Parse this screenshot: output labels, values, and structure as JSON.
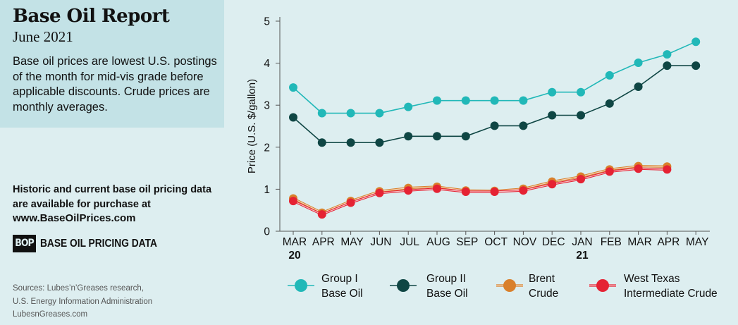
{
  "header": {
    "title": "Base Oil Report",
    "subtitle": "June 2021",
    "description": "Base oil prices are lowest U.S. postings of the month for mid-vis grade before applicable discounts. Crude prices are monthly averages."
  },
  "purchase": {
    "note": "Historic and current base oil pricing data are available for purchase at",
    "url": "www.BaseOilPrices.com",
    "logo_mark": "BOP",
    "logo_text": "BASE OIL PRICING DATA"
  },
  "footer": {
    "sources_line1": "Sources: Lubes’n’Greases research,",
    "sources_line2": "U.S. Energy Information Administration",
    "site": "LubesnGreases.com"
  },
  "chart_data": {
    "type": "line",
    "ylabel": "Price (U.S. $/gallon)",
    "ylim": [
      0,
      5
    ],
    "yticks": [
      "0",
      "1",
      "2",
      "3",
      "4",
      "5"
    ],
    "categories": [
      "MAR",
      "APR",
      "MAY",
      "JUN",
      "JUL",
      "AUG",
      "SEP",
      "OCT",
      "NOV",
      "DEC",
      "JAN",
      "FEB",
      "MAR",
      "APR",
      "MAY"
    ],
    "year_labels": [
      {
        "index": 0,
        "label": "20"
      },
      {
        "index": 10,
        "label": "21"
      }
    ],
    "grid": false,
    "legend_position": "bottom",
    "series": [
      {
        "name": "Group I Base Oil",
        "legend_lines": [
          "Group I",
          "Base Oil"
        ],
        "color": "#21b8b8",
        "values": [
          3.42,
          2.81,
          2.81,
          2.81,
          2.96,
          3.11,
          3.11,
          3.11,
          3.11,
          3.31,
          3.31,
          3.71,
          4.01,
          4.21,
          4.51
        ]
      },
      {
        "name": "Group II Base Oil",
        "legend_lines": [
          "Group II",
          "Base Oil"
        ],
        "color": "#0f4644",
        "values": [
          2.71,
          2.11,
          2.11,
          2.11,
          2.26,
          2.26,
          2.26,
          2.51,
          2.51,
          2.76,
          2.76,
          3.04,
          3.44,
          3.94,
          3.94
        ]
      },
      {
        "name": "Brent Crude",
        "legend_lines": [
          "Brent",
          "Crude"
        ],
        "color": "#d9802b",
        "values": [
          0.78,
          0.44,
          0.72,
          0.95,
          1.03,
          1.06,
          0.97,
          0.96,
          1.01,
          1.18,
          1.3,
          1.47,
          1.55,
          1.54,
          null
        ]
      },
      {
        "name": "West Texas Intermediate Crude",
        "legend_lines": [
          "West Texas",
          "Intermediate Crude"
        ],
        "color": "#e52233",
        "values": [
          0.72,
          0.4,
          0.68,
          0.91,
          0.97,
          1.01,
          0.94,
          0.94,
          0.97,
          1.12,
          1.24,
          1.42,
          1.49,
          1.47,
          null
        ]
      }
    ]
  }
}
